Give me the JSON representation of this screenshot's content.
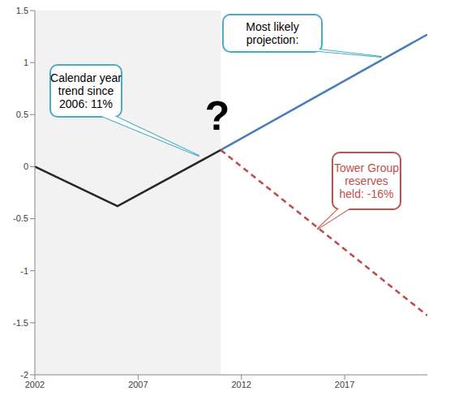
{
  "chart_data": {
    "type": "line",
    "xlim": [
      2002,
      2021
    ],
    "xticks": [
      2002,
      2007,
      2012,
      2017
    ],
    "ylim": [
      -2,
      1.5
    ],
    "yticks": [
      -2,
      -1.5,
      -1,
      -0.5,
      0,
      0.5,
      1,
      1.5
    ],
    "grid": false,
    "shaded_region": [
      2002,
      2011
    ],
    "series": [
      {
        "x": [
          2002,
          2006,
          2011
        ],
        "values": [
          0,
          -0.38,
          0.16
        ],
        "color": "#262626",
        "line_style": "solid"
      },
      {
        "x": [
          2011,
          2021
        ],
        "values": [
          0.16,
          1.27
        ],
        "color": "#4a7ebb",
        "line_style": "solid"
      },
      {
        "x": [
          2011,
          2021
        ],
        "values": [
          0.16,
          -1.43
        ],
        "color": "#be4b48",
        "line_style": "dashed"
      }
    ],
    "annotations": [
      {
        "text": "Calendar year trend since 2006: 11%",
        "color": "#4bacc6"
      },
      {
        "text": "Most likely projection:",
        "color": "#4bacc6"
      },
      {
        "text": "Tower Group reserves held: -16%",
        "color": "#c0504d"
      },
      {
        "text": "?",
        "color": "#000000"
      }
    ]
  }
}
